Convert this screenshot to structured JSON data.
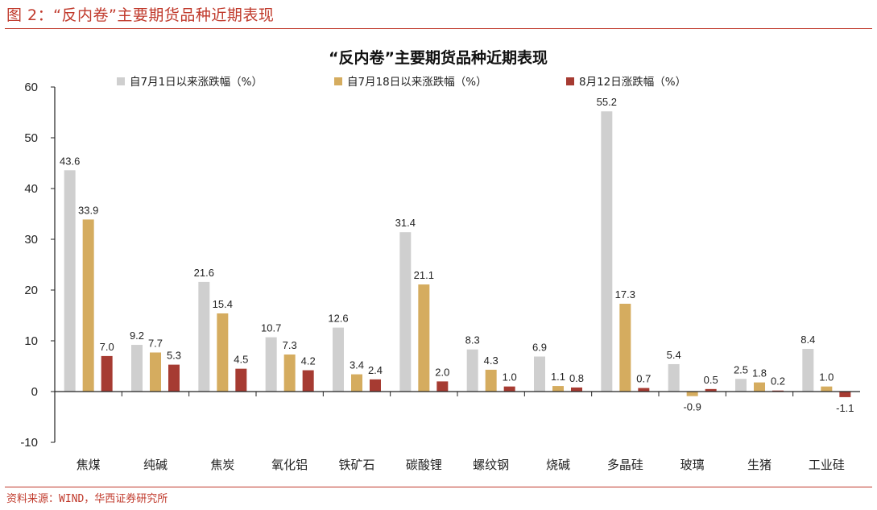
{
  "header": {
    "title": "图 2：“反内卷”主要期货品种近期表现"
  },
  "footer": {
    "source": "资料来源：WIND，华西证券研究所"
  },
  "chart_data": {
    "type": "bar",
    "title": "“反内卷”主要期货品种近期表现",
    "xlabel": "",
    "ylabel": "",
    "ylim": [
      -10,
      60
    ],
    "yticks": [
      -10,
      0,
      10,
      20,
      30,
      40,
      50,
      60
    ],
    "grid": false,
    "legend_position": "top",
    "categories": [
      "焦煤",
      "纯碱",
      "焦炭",
      "氧化铝",
      "铁矿石",
      "碳酸锂",
      "螺纹钢",
      "烧碱",
      "多晶硅",
      "玻璃",
      "生猪",
      "工业硅"
    ],
    "series": [
      {
        "name": "自7月1日以来涨跌幅（%）",
        "color": "#cfcfcf",
        "values": [
          43.6,
          9.2,
          21.6,
          10.7,
          12.6,
          31.4,
          8.3,
          6.9,
          55.2,
          5.4,
          2.5,
          8.4
        ],
        "labels": [
          "43.6",
          "9.2",
          "21.6",
          "10.7",
          "12.6",
          "31.4",
          "8.3",
          "6.9",
          "55.2",
          "5.4",
          "2.5",
          "8.4"
        ]
      },
      {
        "name": "自7月18日以来涨跌幅（%）",
        "color": "#d5ac5f",
        "values": [
          33.9,
          7.7,
          15.4,
          7.3,
          3.4,
          21.1,
          4.3,
          1.1,
          17.3,
          -0.9,
          1.8,
          1.0
        ],
        "labels": [
          "33.9",
          "7.7",
          "15.4",
          "7.3",
          "3.4",
          "21.1",
          "4.3",
          "1.1",
          "17.3",
          "-0.9",
          "1.8",
          "1.0"
        ]
      },
      {
        "name": "8月12日涨跌幅（%）",
        "color": "#a63b32",
        "values": [
          7.0,
          5.3,
          4.5,
          4.2,
          2.4,
          2.0,
          1.0,
          0.8,
          0.7,
          0.5,
          0.2,
          -1.1
        ],
        "labels": [
          "7.0",
          "5.3",
          "4.5",
          "4.2",
          "2.4",
          "2.0",
          "1.0",
          "0.8",
          "0.7",
          "0.5",
          "0.2",
          "-1.1"
        ]
      }
    ]
  }
}
